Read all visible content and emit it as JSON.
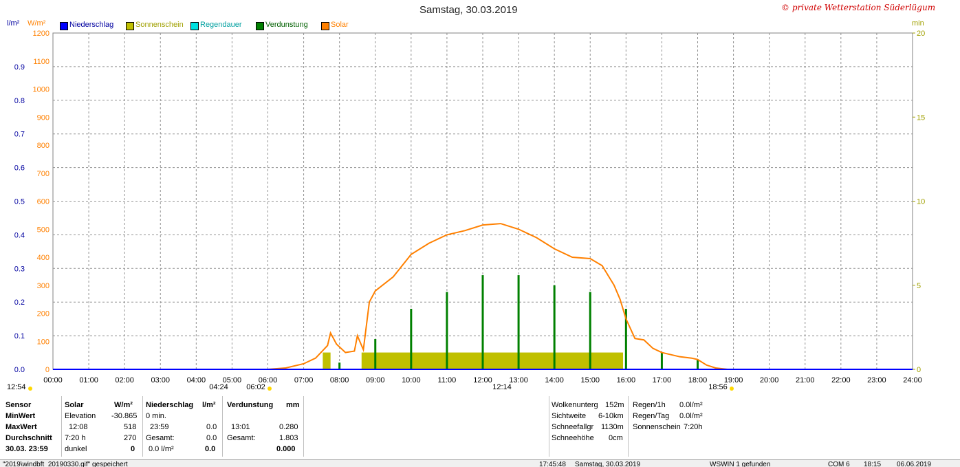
{
  "title": "Samstag, 30.03.2019",
  "copyright": "© private Wetterstation Süderlügum",
  "axis": {
    "left1_unit": "l/m²",
    "left2_unit": "W/m²",
    "right_unit": "min",
    "left1_ticks": [
      "0.0",
      "0.1",
      "0.2",
      "0.3",
      "0.4",
      "0.5",
      "0.6",
      "0.7",
      "0.8",
      "0.9"
    ],
    "left2_ticks": [
      "0",
      "100",
      "200",
      "300",
      "400",
      "500",
      "600",
      "700",
      "800",
      "900",
      "1000",
      "1100",
      "1200"
    ],
    "right_ticks": [
      "0",
      "5",
      "10",
      "15",
      "20"
    ],
    "x_ticks": [
      "00:00",
      "01:00",
      "02:00",
      "03:00",
      "04:00",
      "05:00",
      "06:00",
      "07:00",
      "08:00",
      "09:00",
      "10:00",
      "11:00",
      "12:00",
      "13:00",
      "14:00",
      "15:00",
      "16:00",
      "17:00",
      "18:00",
      "19:00",
      "20:00",
      "21:00",
      "22:00",
      "23:00",
      "24:00"
    ],
    "markers": [
      "12:54",
      "04:24",
      "06:02",
      "12:14",
      "18:56"
    ]
  },
  "legend": [
    {
      "label": "Niederschlag",
      "color": "#0000ff"
    },
    {
      "label": "Sonnenschein",
      "color": "#c0c000"
    },
    {
      "label": "Regendauer",
      "color": "#00e0e0"
    },
    {
      "label": "Verdunstung",
      "color": "#008000"
    },
    {
      "label": "Solar",
      "color": "#ff8000"
    }
  ],
  "chart_data": {
    "type": "line",
    "title": "Samstag, 30.03.2019",
    "x_range": [
      "00:00",
      "24:00"
    ],
    "ylim_solar": [
      0,
      1200
    ],
    "ylim_precip": [
      0,
      1.0
    ],
    "ylim_min": [
      0,
      20
    ],
    "grid": true,
    "series": [
      {
        "name": "Solar",
        "unit": "W/m²",
        "color": "#ff8000",
        "x": [
          "06:00",
          "06:30",
          "07:00",
          "07:20",
          "07:40",
          "07:45",
          "07:55",
          "08:10",
          "08:25",
          "08:30",
          "08:40",
          "08:50",
          "09:00",
          "09:30",
          "10:00",
          "10:30",
          "11:00",
          "11:30",
          "12:00",
          "12:30",
          "13:00",
          "13:30",
          "14:00",
          "14:30",
          "15:00",
          "15:20",
          "15:40",
          "15:50",
          "16:00",
          "16:15",
          "16:30",
          "16:45",
          "17:00",
          "17:30",
          "17:50",
          "18:00",
          "18:15",
          "18:30",
          "18:50"
        ],
        "values": [
          0,
          5,
          20,
          40,
          85,
          130,
          90,
          60,
          65,
          120,
          70,
          240,
          280,
          330,
          410,
          450,
          480,
          495,
          515,
          520,
          500,
          470,
          430,
          400,
          395,
          370,
          300,
          250,
          180,
          110,
          105,
          75,
          60,
          45,
          40,
          35,
          15,
          5,
          0
        ]
      },
      {
        "name": "Sonnenschein",
        "unit": "min",
        "color": "#c0c000",
        "blocks": [
          [
            "07:32",
            "07:45"
          ],
          [
            "08:37",
            "15:55"
          ]
        ],
        "value": 1.0
      },
      {
        "name": "Verdunstung",
        "unit": "mm",
        "color": "#008000",
        "x": [
          "08:00",
          "09:00",
          "10:00",
          "11:00",
          "12:00",
          "13:00",
          "14:00",
          "15:00",
          "16:00",
          "17:00",
          "18:00"
        ],
        "values": [
          0.02,
          0.09,
          0.18,
          0.23,
          0.28,
          0.28,
          0.25,
          0.23,
          0.18,
          0.05,
          0.03
        ]
      },
      {
        "name": "Niederschlag",
        "unit": "l/m²",
        "color": "#0000ff",
        "x": [
          "00:00",
          "24:00"
        ],
        "values": [
          0.0,
          0.0
        ]
      }
    ]
  },
  "stats": {
    "sensor": {
      "h": "Sensor",
      "min": "MinWert",
      "max": "MaxWert",
      "avg": "Durchschnitt",
      "date": "30.03.  23:59"
    },
    "solar": {
      "h": "Solar",
      "unit": "W/m²",
      "min_l": "Elevation",
      "min_v": "-30.865",
      "max_l": "12:08",
      "max_v": "518",
      "avg_l": "7:20 h",
      "avg_v": "270",
      "last_l": "dunkel",
      "last_v": "0"
    },
    "precip": {
      "h": "Niederschlag",
      "unit": "l/m²",
      "min_l": "0 min.",
      "max_l": "23:59",
      "max_v": "0.0",
      "avg_l": "Gesamt:",
      "avg_v": "0.0",
      "last_l": "0.0 l/m²",
      "last_v": "0.0"
    },
    "evap": {
      "h": "Verdunstung",
      "unit": "mm",
      "max_l": "13:01",
      "max_v": "0.280",
      "avg_l": "Gesamt:",
      "avg_v": "1.803",
      "last_v": "0.000"
    },
    "cloud": [
      [
        "Wolkenunterg",
        "152m"
      ],
      [
        "Sichtweite",
        "6-10km"
      ],
      [
        "Schneefallgr",
        "1130m"
      ],
      [
        "Schneehöhe",
        "0cm"
      ]
    ],
    "rain": [
      [
        "Regen/1h",
        "0.0l/m²"
      ],
      [
        "Regen/Tag",
        "0.0l/m²"
      ],
      [
        "Sonnenschein",
        "7:20h"
      ]
    ]
  },
  "status": {
    "file": "\"2019\\windbft_20190330.gif\" gespeichert",
    "time": "17:45:48",
    "date": "Samstag, 30.03.2019",
    "ws": "WSWIN 1 gefunden",
    "com": "COM 6",
    "clock": "18:15",
    "date2": "06.06.2019"
  }
}
